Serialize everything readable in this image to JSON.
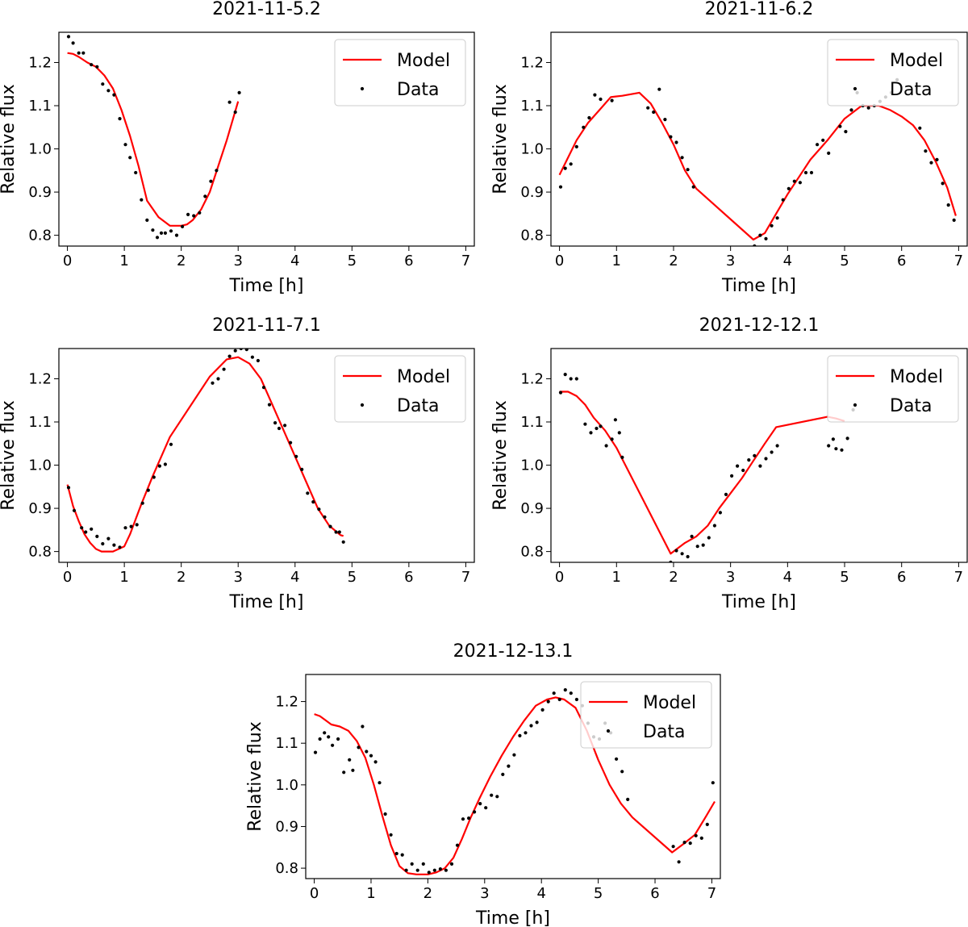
{
  "chart_data": [
    {
      "type": "line",
      "title": "2021-11-5.2",
      "xlabel": "Time [h]",
      "ylabel": "Relative flux",
      "xlim": [
        -0.15,
        7.15
      ],
      "ylim": [
        0.775,
        1.27
      ],
      "xticks": [
        0,
        1,
        2,
        3,
        4,
        5,
        6,
        7
      ],
      "yticks": [
        0.8,
        0.9,
        1.0,
        1.1,
        1.2
      ],
      "legend": {
        "position": "top-right",
        "entries": [
          "Model",
          "Data"
        ]
      },
      "series": [
        {
          "name": "Model",
          "color": "#ff0000",
          "x": [
            0,
            0.1,
            0.2,
            0.35,
            0.5,
            0.65,
            0.8,
            0.95,
            1.1,
            1.25,
            1.4,
            1.6,
            1.8,
            2.0,
            2.1,
            2.2,
            2.35,
            2.5,
            2.65,
            2.8,
            3.0
          ],
          "y": [
            1.222,
            1.22,
            1.213,
            1.2,
            1.19,
            1.17,
            1.14,
            1.09,
            1.03,
            0.96,
            0.88,
            0.842,
            0.822,
            0.822,
            0.825,
            0.835,
            0.86,
            0.9,
            0.96,
            1.02,
            1.11
          ]
        },
        {
          "name": "Data",
          "color": "#000000",
          "x": [
            0.02,
            0.1,
            0.2,
            0.28,
            0.42,
            0.52,
            0.62,
            0.72,
            0.82,
            0.92,
            1.02,
            1.1,
            1.2,
            1.3,
            1.4,
            1.5,
            1.58,
            1.65,
            1.72,
            1.82,
            1.92,
            2.02,
            2.12,
            2.22,
            2.32,
            2.42,
            2.52,
            2.62,
            2.85,
            2.95,
            3.02
          ],
          "y": [
            1.26,
            1.245,
            1.222,
            1.222,
            1.195,
            1.19,
            1.15,
            1.135,
            1.125,
            1.07,
            1.01,
            0.98,
            0.945,
            0.882,
            0.835,
            0.812,
            0.795,
            0.805,
            0.805,
            0.81,
            0.8,
            0.82,
            0.848,
            0.845,
            0.852,
            0.89,
            0.925,
            0.95,
            1.108,
            1.085,
            1.13
          ]
        }
      ]
    },
    {
      "type": "line",
      "title": "2021-11-6.2",
      "xlabel": "Time [h]",
      "ylabel": "Relative flux",
      "xlim": [
        -0.15,
        7.15
      ],
      "ylim": [
        0.775,
        1.27
      ],
      "xticks": [
        0,
        1,
        2,
        3,
        4,
        5,
        6,
        7
      ],
      "yticks": [
        0.8,
        0.9,
        1.0,
        1.1,
        1.2
      ],
      "legend": {
        "position": "top-right",
        "entries": [
          "Model",
          "Data"
        ]
      },
      "series": [
        {
          "name": "Model",
          "color": "#ff0000",
          "x": [
            0,
            0.15,
            0.3,
            0.5,
            0.7,
            0.9,
            1.1,
            1.4,
            1.6,
            1.8,
            2.0,
            2.2,
            2.4,
            3.4,
            3.6,
            3.8,
            4.0,
            4.2,
            4.4,
            4.7,
            5.0,
            5.3,
            5.6,
            5.8,
            6.0,
            6.2,
            6.4,
            6.6,
            6.8,
            6.95
          ],
          "y": [
            0.94,
            0.98,
            1.02,
            1.06,
            1.09,
            1.12,
            1.123,
            1.13,
            1.105,
            1.06,
            1.01,
            0.95,
            0.908,
            0.79,
            0.805,
            0.85,
            0.895,
            0.935,
            0.975,
            1.02,
            1.07,
            1.1,
            1.1,
            1.09,
            1.075,
            1.055,
            1.02,
            0.97,
            0.91,
            0.845
          ]
        },
        {
          "name": "Data",
          "color": "#000000",
          "x": [
            0.02,
            0.1,
            0.2,
            0.3,
            0.42,
            0.52,
            0.62,
            0.72,
            0.92,
            1.55,
            1.65,
            1.75,
            1.85,
            1.95,
            2.05,
            2.15,
            2.25,
            2.35,
            3.42,
            3.52,
            3.62,
            3.72,
            3.82,
            3.92,
            4.02,
            4.12,
            4.22,
            4.32,
            4.42,
            4.52,
            4.62,
            4.72,
            4.92,
            5.02,
            5.12,
            5.22,
            5.32,
            5.42,
            5.52,
            5.62,
            5.72,
            5.82,
            5.92,
            6.32,
            6.42,
            6.52,
            6.62,
            6.72,
            6.82,
            6.92
          ],
          "y": [
            0.912,
            0.955,
            0.965,
            1.005,
            1.05,
            1.072,
            1.125,
            1.115,
            1.112,
            1.095,
            1.085,
            1.138,
            1.068,
            1.028,
            1.015,
            0.98,
            0.952,
            0.912,
            0.775,
            0.8,
            0.792,
            0.822,
            0.84,
            0.882,
            0.908,
            0.925,
            0.922,
            0.945,
            0.945,
            1.01,
            1.02,
            0.99,
            1.052,
            1.04,
            1.09,
            1.13,
            1.1,
            1.095,
            1.1,
            1.11,
            1.12,
            1.13,
            1.16,
            1.048,
            0.995,
            0.968,
            0.975,
            0.92,
            0.87,
            0.835
          ]
        }
      ]
    },
    {
      "type": "line",
      "title": "2021-11-7.1",
      "xlabel": "Time [h]",
      "ylabel": "Relative flux",
      "xlim": [
        -0.15,
        7.15
      ],
      "ylim": [
        0.775,
        1.27
      ],
      "xticks": [
        0,
        1,
        2,
        3,
        4,
        5,
        6,
        7
      ],
      "yticks": [
        0.8,
        0.9,
        1.0,
        1.1,
        1.2
      ],
      "legend": {
        "position": "top-right",
        "entries": [
          "Model",
          "Data"
        ]
      },
      "series": [
        {
          "name": "Model",
          "color": "#ff0000",
          "x": [
            0,
            0.1,
            0.2,
            0.3,
            0.4,
            0.5,
            0.6,
            0.8,
            1.0,
            1.1,
            1.2,
            1.3,
            1.5,
            1.8,
            2.5,
            2.8,
            3.0,
            3.2,
            3.4,
            3.6,
            3.8,
            4.0,
            4.2,
            4.4,
            4.6,
            4.8,
            4.85
          ],
          "y": [
            0.955,
            0.905,
            0.87,
            0.84,
            0.82,
            0.806,
            0.8,
            0.8,
            0.812,
            0.84,
            0.875,
            0.91,
            0.975,
            1.065,
            1.205,
            1.245,
            1.25,
            1.235,
            1.2,
            1.14,
            1.08,
            1.02,
            0.96,
            0.9,
            0.86,
            0.838,
            0.836
          ]
        },
        {
          "name": "Data",
          "color": "#000000",
          "x": [
            0.02,
            0.12,
            0.25,
            0.32,
            0.42,
            0.52,
            0.62,
            0.72,
            0.82,
            0.92,
            1.02,
            1.12,
            1.22,
            1.32,
            1.42,
            1.52,
            1.62,
            1.72,
            1.82,
            2.55,
            2.65,
            2.75,
            2.85,
            2.95,
            3.05,
            3.15,
            3.25,
            3.35,
            3.45,
            3.55,
            3.65,
            3.72,
            3.82,
            3.92,
            4.02,
            4.12,
            4.22,
            4.32,
            4.42,
            4.52,
            4.62,
            4.72,
            4.78,
            4.85
          ],
          "y": [
            0.948,
            0.895,
            0.855,
            0.845,
            0.852,
            0.835,
            0.818,
            0.83,
            0.815,
            0.81,
            0.855,
            0.858,
            0.862,
            0.912,
            0.942,
            0.972,
            0.998,
            1.002,
            1.048,
            1.19,
            1.2,
            1.222,
            1.252,
            1.265,
            1.27,
            1.268,
            1.25,
            1.242,
            1.18,
            1.14,
            1.098,
            1.085,
            1.092,
            1.052,
            1.02,
            0.99,
            0.935,
            0.915,
            0.898,
            0.88,
            0.858,
            0.845,
            0.845,
            0.822
          ]
        }
      ]
    },
    {
      "type": "line",
      "title": "2021-12-12.1",
      "xlabel": "Time [h]",
      "ylabel": "Relative flux",
      "xlim": [
        -0.15,
        7.15
      ],
      "ylim": [
        0.775,
        1.27
      ],
      "xticks": [
        0,
        1,
        2,
        3,
        4,
        5,
        6,
        7
      ],
      "yticks": [
        0.8,
        0.9,
        1.0,
        1.1,
        1.2
      ],
      "legend": {
        "position": "top-right",
        "entries": [
          "Model",
          "Data"
        ]
      },
      "series": [
        {
          "name": "Model",
          "color": "#ff0000",
          "x": [
            0,
            0.15,
            0.3,
            0.45,
            0.6,
            0.8,
            1.0,
            1.95,
            2.05,
            2.2,
            2.4,
            2.6,
            2.8,
            3.0,
            3.2,
            3.4,
            3.6,
            3.8,
            4.7,
            4.85,
            5.0
          ],
          "y": [
            1.17,
            1.17,
            1.16,
            1.14,
            1.11,
            1.08,
            1.04,
            0.795,
            0.805,
            0.82,
            0.835,
            0.86,
            0.9,
            0.935,
            0.97,
            1.01,
            1.05,
            1.088,
            1.112,
            1.108,
            1.102
          ]
        },
        {
          "name": "Data",
          "color": "#000000",
          "x": [
            0.02,
            0.1,
            0.2,
            0.3,
            0.45,
            0.55,
            0.65,
            0.72,
            0.82,
            0.92,
            0.98,
            1.05,
            1.1,
            1.95,
            2.05,
            2.15,
            2.25,
            2.32,
            2.42,
            2.52,
            2.62,
            2.72,
            2.82,
            2.92,
            3.02,
            3.12,
            3.22,
            3.32,
            3.42,
            3.52,
            3.62,
            3.72,
            3.82,
            4.72,
            4.8,
            4.85,
            4.95,
            5.05,
            5.15
          ],
          "y": [
            1.168,
            1.21,
            1.2,
            1.2,
            1.095,
            1.075,
            1.085,
            1.09,
            1.045,
            1.06,
            1.105,
            1.075,
            1.018,
            0.775,
            0.802,
            0.795,
            0.788,
            0.835,
            0.812,
            0.815,
            0.832,
            0.86,
            0.89,
            0.932,
            0.975,
            0.998,
            0.988,
            1.012,
            1.022,
            0.998,
            1.015,
            1.03,
            1.045,
            1.045,
            1.06,
            1.038,
            1.035,
            1.062,
            1.128
          ]
        }
      ]
    },
    {
      "type": "line",
      "title": "2021-12-13.1",
      "xlabel": "Time [h]",
      "ylabel": "Relative flux",
      "xlim": [
        -0.15,
        7.15
      ],
      "ylim": [
        0.775,
        1.265
      ],
      "xticks": [
        0,
        1,
        2,
        3,
        4,
        5,
        6,
        7
      ],
      "yticks": [
        0.8,
        0.9,
        1.0,
        1.1,
        1.2
      ],
      "legend": {
        "position": "top-right",
        "entries": [
          "Model",
          "Data"
        ]
      },
      "series": [
        {
          "name": "Model",
          "color": "#ff0000",
          "x": [
            0,
            0.1,
            0.2,
            0.3,
            0.45,
            0.6,
            0.75,
            0.9,
            1.05,
            1.2,
            1.35,
            1.5,
            1.65,
            1.8,
            2.0,
            2.15,
            2.3,
            2.45,
            2.6,
            2.75,
            2.9,
            3.1,
            3.3,
            3.5,
            3.7,
            3.9,
            4.1,
            4.25,
            4.4,
            4.6,
            4.8,
            5.0,
            5.2,
            5.4,
            5.6,
            6.3,
            6.5,
            6.7,
            6.9,
            7.05
          ],
          "y": [
            1.17,
            1.165,
            1.155,
            1.145,
            1.14,
            1.13,
            1.105,
            1.065,
            1.0,
            0.925,
            0.855,
            0.805,
            0.788,
            0.785,
            0.785,
            0.79,
            0.8,
            0.825,
            0.87,
            0.92,
            0.965,
            1.02,
            1.07,
            1.115,
            1.155,
            1.19,
            1.205,
            1.21,
            1.205,
            1.185,
            1.13,
            1.06,
            1.0,
            0.955,
            0.922,
            0.838,
            0.858,
            0.88,
            0.925,
            0.96
          ]
        },
        {
          "name": "Data",
          "color": "#000000",
          "x": [
            0.02,
            0.1,
            0.18,
            0.25,
            0.32,
            0.42,
            0.52,
            0.62,
            0.68,
            0.78,
            0.85,
            0.92,
            1.0,
            1.08,
            1.15,
            1.25,
            1.35,
            1.45,
            1.55,
            1.62,
            1.72,
            1.82,
            1.92,
            2.02,
            2.12,
            2.22,
            2.32,
            2.42,
            2.52,
            2.62,
            2.72,
            2.82,
            2.92,
            3.02,
            3.12,
            3.22,
            3.32,
            3.42,
            3.52,
            3.62,
            3.72,
            3.82,
            3.92,
            4.02,
            4.12,
            4.22,
            4.32,
            4.42,
            4.52,
            4.62,
            4.72,
            4.82,
            4.92,
            5.02,
            5.12,
            5.22,
            5.32,
            5.42,
            5.52,
            6.32,
            6.42,
            6.52,
            6.62,
            6.72,
            6.82,
            6.92,
            7.02
          ],
          "y": [
            1.078,
            1.11,
            1.125,
            1.115,
            1.095,
            1.11,
            1.03,
            1.06,
            1.035,
            1.09,
            1.14,
            1.08,
            1.07,
            1.055,
            1.005,
            0.93,
            0.88,
            0.835,
            0.832,
            0.795,
            0.81,
            0.795,
            0.81,
            0.79,
            0.795,
            0.798,
            0.795,
            0.81,
            0.855,
            0.918,
            0.92,
            0.935,
            0.955,
            0.945,
            0.975,
            0.972,
            1.025,
            1.045,
            1.072,
            1.118,
            1.125,
            1.142,
            1.15,
            1.18,
            1.2,
            1.22,
            1.205,
            1.228,
            1.22,
            1.205,
            1.19,
            1.148,
            1.115,
            1.11,
            1.148,
            1.125,
            1.062,
            1.032,
            0.965,
            0.852,
            0.815,
            0.862,
            0.86,
            0.878,
            0.872,
            0.905,
            1.005
          ]
        }
      ]
    }
  ]
}
